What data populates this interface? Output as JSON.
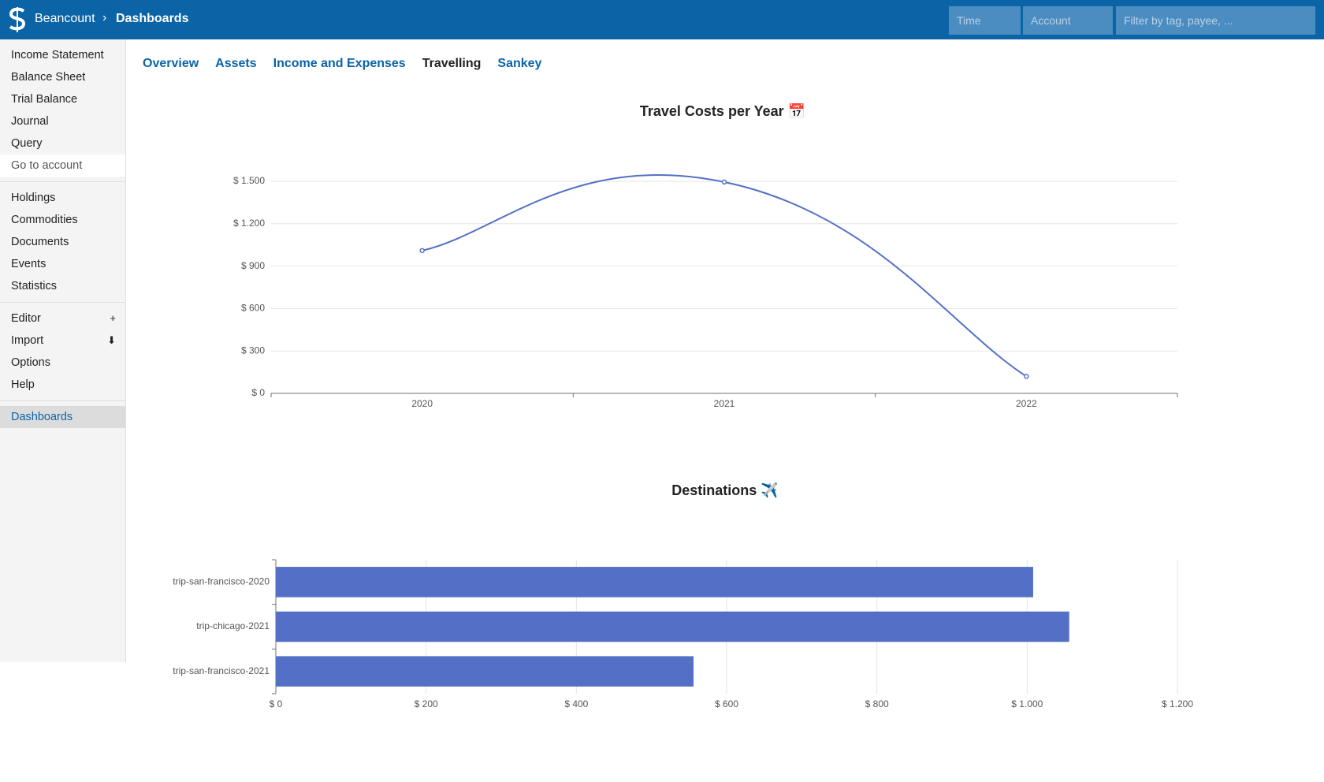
{
  "header": {
    "brand": "Beancount",
    "page": "Dashboards",
    "filters": [
      "Time",
      "Account",
      "Filter by tag, payee, ..."
    ]
  },
  "sidebar": {
    "groups": [
      [
        "Income Statement",
        "Balance Sheet",
        "Trial Balance",
        "Journal",
        "Query",
        "Go to account"
      ],
      [
        "Holdings",
        "Commodities",
        "Documents",
        "Events",
        "Statistics"
      ],
      [
        "Editor",
        "Import",
        "Options",
        "Help"
      ],
      [
        "Dashboards"
      ]
    ]
  },
  "tabs": [
    "Overview",
    "Assets",
    "Income and Expenses",
    "Travelling",
    "Sankey"
  ],
  "chart_data": [
    {
      "type": "line",
      "title": "Travel Costs per Year 📅",
      "categories": [
        "2020",
        "2021",
        "2022"
      ],
      "values": [
        1010,
        1495,
        120
      ],
      "color": "#5470c6",
      "ylim": [
        0,
        1500
      ],
      "yticks": [
        {
          "value": 0,
          "label": "$ 0"
        },
        {
          "value": 300,
          "label": "$ 300"
        },
        {
          "value": 600,
          "label": "$ 600"
        },
        {
          "value": 900,
          "label": "$ 900"
        },
        {
          "value": 1200,
          "label": "$ 1.200"
        },
        {
          "value": 1500,
          "label": "$ 1.500"
        }
      ],
      "grid": true
    },
    {
      "type": "bar",
      "horizontal": true,
      "title": "Destinations ✈️",
      "categories": [
        "trip-san-francisco-2020",
        "trip-chicago-2021",
        "trip-san-francisco-2021"
      ],
      "values": [
        1008,
        1056,
        556
      ],
      "color": "#5470c6",
      "xlim": [
        0,
        1200
      ],
      "xticks": [
        {
          "value": 0,
          "label": "$ 0"
        },
        {
          "value": 200,
          "label": "$ 200"
        },
        {
          "value": 400,
          "label": "$ 400"
        },
        {
          "value": 600,
          "label": "$ 600"
        },
        {
          "value": 800,
          "label": "$ 800"
        },
        {
          "value": 1000,
          "label": "$ 1.000"
        },
        {
          "value": 1200,
          "label": "$ 1.200"
        }
      ],
      "grid": true
    }
  ]
}
